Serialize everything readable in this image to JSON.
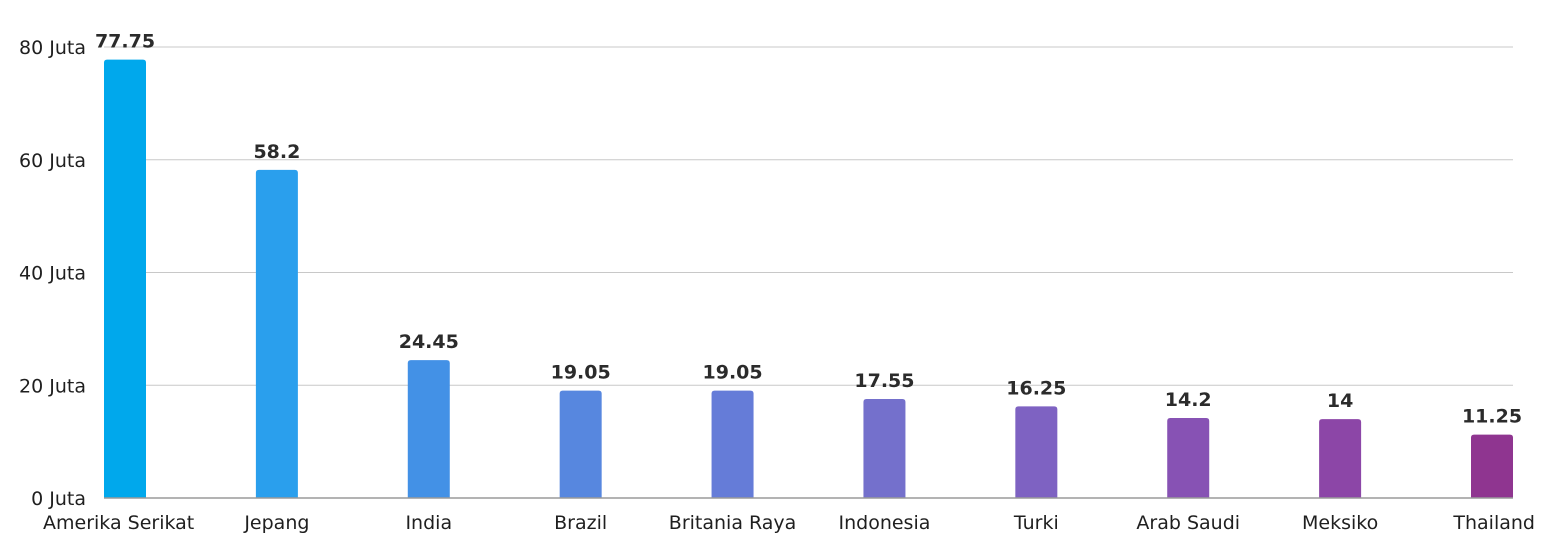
{
  "chart_data": {
    "type": "bar",
    "categories": [
      "Amerika Serikat",
      "Jepang",
      "India",
      "Brazil",
      "Britania Raya",
      "Indonesia",
      "Turki",
      "Arab Saudi",
      "Meksiko",
      "Thailand"
    ],
    "values": [
      77.75,
      58.2,
      24.45,
      19.05,
      19.05,
      17.55,
      16.25,
      14.2,
      14,
      11.25
    ],
    "value_labels": [
      "77.75",
      "58.2",
      "24.45",
      "19.05",
      "19.05",
      "17.55",
      "16.25",
      "14.2",
      "14",
      "11.25"
    ],
    "colors": [
      "#00a8ec",
      "#2a9fed",
      "#4391e6",
      "#5787df",
      "#657cd8",
      "#7470cc",
      "#7e62c2",
      "#8752b4",
      "#8c46a7",
      "#8f3590"
    ],
    "title": "",
    "xlabel": "",
    "ylabel": "",
    "ylim": [
      0,
      80
    ],
    "yticks": [
      0,
      20,
      40,
      60,
      80
    ],
    "ytick_labels": [
      "0 Juta",
      "20 Juta",
      "40 Juta",
      "60 Juta",
      "80 Juta"
    ],
    "grid": true,
    "legend": "none"
  }
}
